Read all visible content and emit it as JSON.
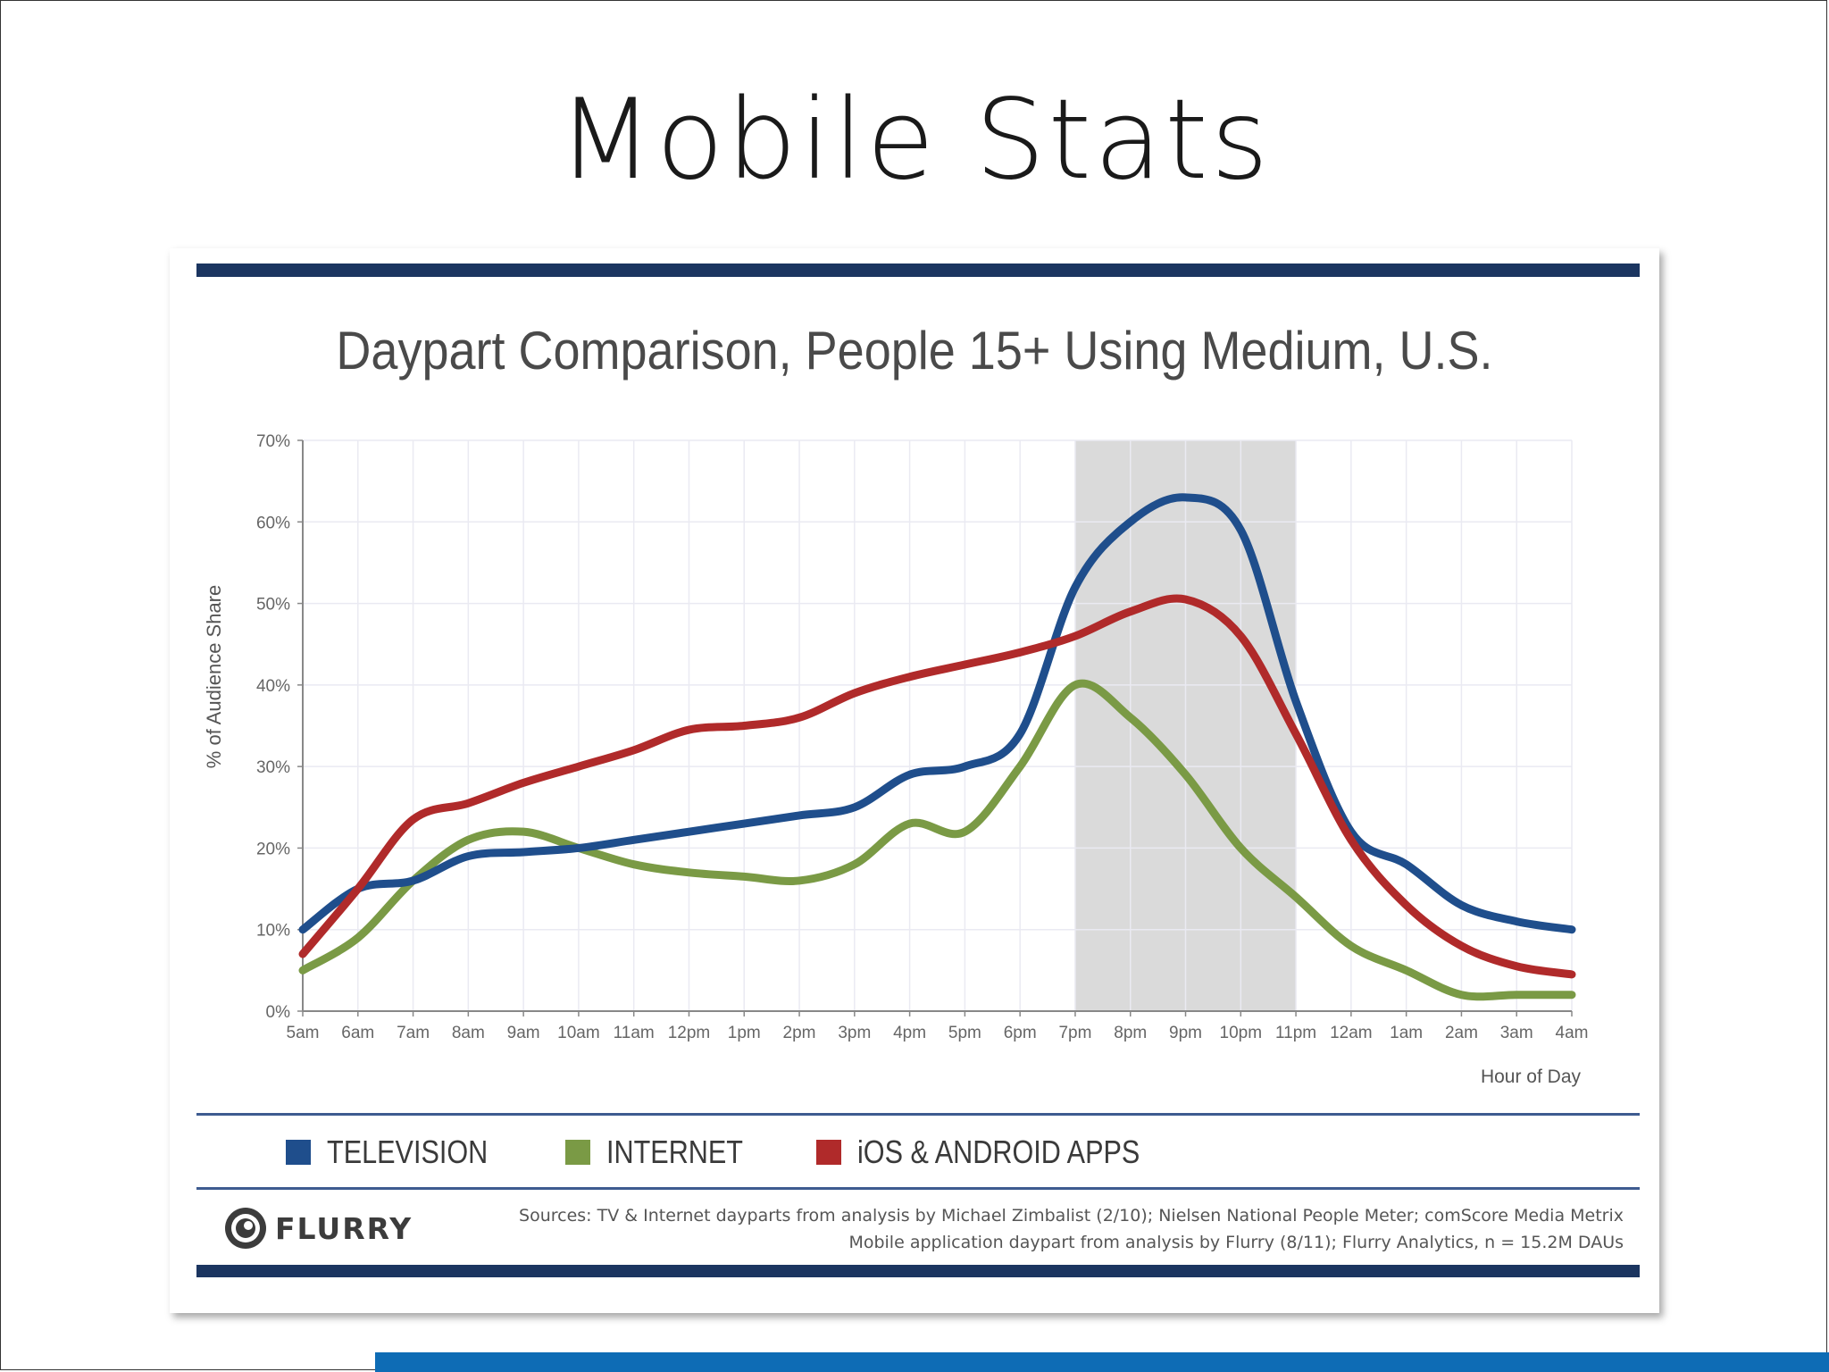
{
  "slide": {
    "title": "Mobile Stats"
  },
  "chart_data": {
    "type": "line",
    "title": "Daypart Comparison, People 15+ Using Medium, U.S.",
    "xlabel": "Hour of Day",
    "ylabel": "% of Audience Share",
    "categories": [
      "5am",
      "6am",
      "7am",
      "8am",
      "9am",
      "10am",
      "11am",
      "12pm",
      "1pm",
      "2pm",
      "3pm",
      "4pm",
      "5pm",
      "6pm",
      "7pm",
      "8pm",
      "9pm",
      "10pm",
      "11pm",
      "12am",
      "1am",
      "2am",
      "3am",
      "4am"
    ],
    "yticks": [
      "0%",
      "10%",
      "20%",
      "30%",
      "40%",
      "50%",
      "60%",
      "70%"
    ],
    "ylim": [
      0,
      70
    ],
    "grid": true,
    "highlight_range": [
      "7pm",
      "11pm"
    ],
    "legend_position": "bottom",
    "series": [
      {
        "name": "TELEVISION",
        "color": "#1f4e8c",
        "values": [
          10,
          15,
          16,
          19,
          19.5,
          20,
          21,
          22,
          23,
          24,
          25,
          29,
          30,
          34,
          52,
          60,
          63,
          59,
          38,
          22,
          18,
          13,
          11,
          10
        ]
      },
      {
        "name": "INTERNET",
        "color": "#7a9a45",
        "values": [
          5,
          9,
          16,
          21,
          22,
          20,
          18,
          17,
          16.5,
          16,
          18,
          23,
          22,
          30,
          40,
          36,
          29,
          20,
          14,
          8,
          5,
          2,
          2,
          2
        ]
      },
      {
        "name": "iOS & ANDROID APPS",
        "color": "#b02a2a",
        "values": [
          7,
          15,
          23.5,
          25.5,
          28,
          30,
          32,
          34.5,
          35,
          36,
          39,
          41,
          42.5,
          44,
          46,
          49,
          50.5,
          46,
          34,
          21,
          13,
          8,
          5.5,
          4.5
        ]
      }
    ]
  },
  "footer": {
    "logo_text": "FLURRY",
    "source_line1": "Sources: TV & Internet dayparts from analysis by Michael Zimbalist (2/10); Nielsen National People Meter; comScore Media Metrix",
    "source_line2": "Mobile application daypart from analysis by Flurry (8/11); Flurry Analytics, n = 15.2M DAUs"
  }
}
